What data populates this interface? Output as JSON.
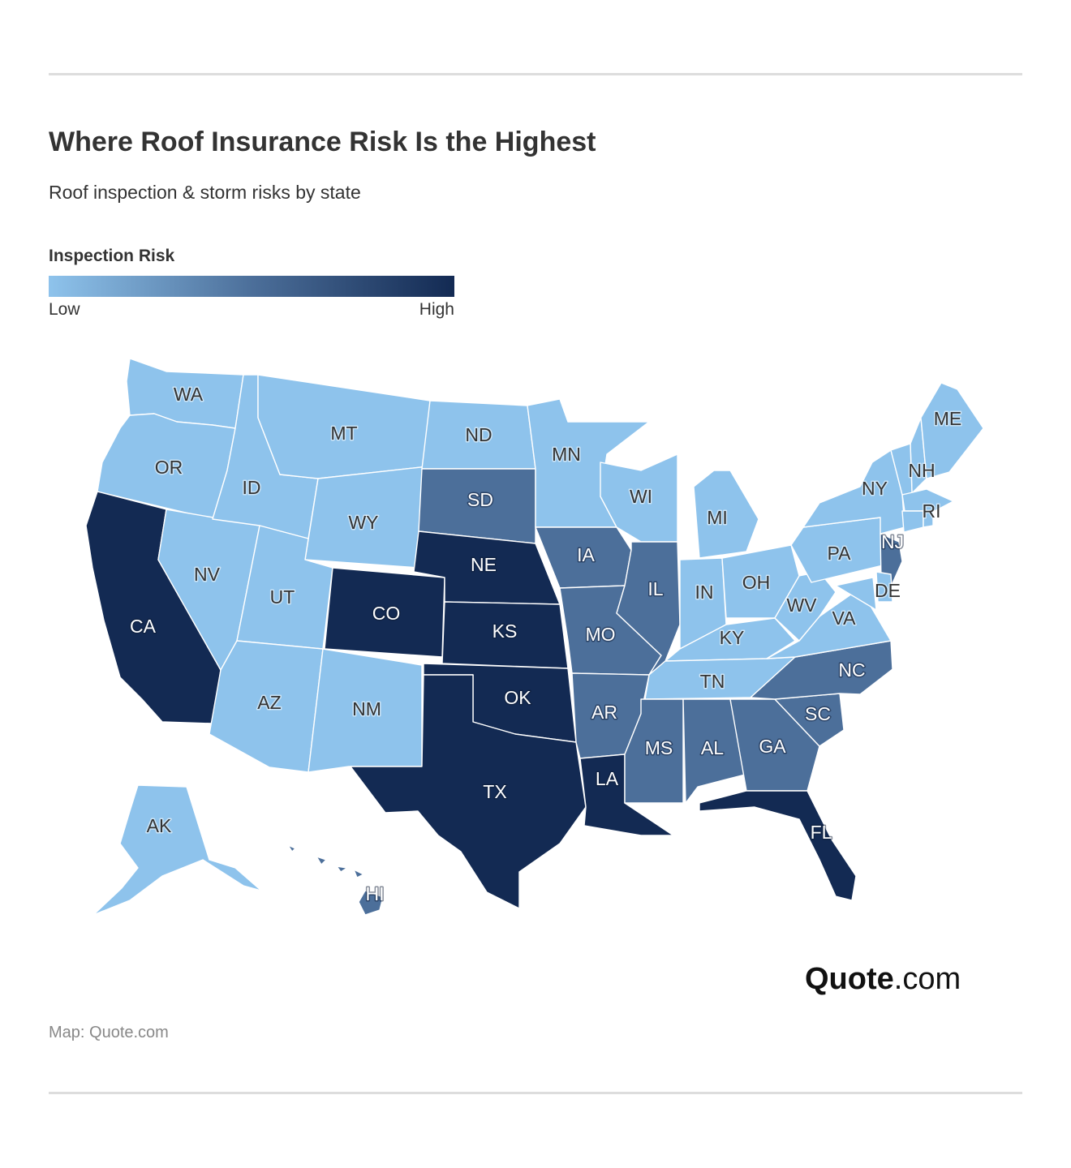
{
  "header": {
    "title": "Where Roof Insurance Risk Is the Highest",
    "subtitle": "Roof inspection & storm risks by state"
  },
  "legend": {
    "title": "Inspection Risk",
    "low_label": "Low",
    "high_label": "High"
  },
  "colors": {
    "low": "#8ec3ec",
    "medium": "#4c6f9a",
    "high": "#132a53",
    "border": "#ffffff"
  },
  "map": {
    "states": [
      {
        "code": "WA",
        "risk": "low"
      },
      {
        "code": "OR",
        "risk": "low"
      },
      {
        "code": "CA",
        "risk": "high"
      },
      {
        "code": "NV",
        "risk": "low"
      },
      {
        "code": "ID",
        "risk": "low"
      },
      {
        "code": "MT",
        "risk": "low"
      },
      {
        "code": "WY",
        "risk": "low"
      },
      {
        "code": "UT",
        "risk": "low"
      },
      {
        "code": "AZ",
        "risk": "low"
      },
      {
        "code": "CO",
        "risk": "high"
      },
      {
        "code": "NM",
        "risk": "low"
      },
      {
        "code": "ND",
        "risk": "low"
      },
      {
        "code": "SD",
        "risk": "medium"
      },
      {
        "code": "NE",
        "risk": "high"
      },
      {
        "code": "KS",
        "risk": "high"
      },
      {
        "code": "OK",
        "risk": "high"
      },
      {
        "code": "TX",
        "risk": "high"
      },
      {
        "code": "MN",
        "risk": "low"
      },
      {
        "code": "IA",
        "risk": "medium"
      },
      {
        "code": "MO",
        "risk": "medium"
      },
      {
        "code": "AR",
        "risk": "medium"
      },
      {
        "code": "LA",
        "risk": "high"
      },
      {
        "code": "WI",
        "risk": "low"
      },
      {
        "code": "IL",
        "risk": "medium"
      },
      {
        "code": "MI",
        "risk": "low"
      },
      {
        "code": "IN",
        "risk": "low"
      },
      {
        "code": "OH",
        "risk": "low"
      },
      {
        "code": "KY",
        "risk": "low"
      },
      {
        "code": "TN",
        "risk": "low"
      },
      {
        "code": "MS",
        "risk": "medium"
      },
      {
        "code": "AL",
        "risk": "medium"
      },
      {
        "code": "GA",
        "risk": "medium"
      },
      {
        "code": "FL",
        "risk": "high"
      },
      {
        "code": "SC",
        "risk": "medium"
      },
      {
        "code": "NC",
        "risk": "medium"
      },
      {
        "code": "VA",
        "risk": "low"
      },
      {
        "code": "WV",
        "risk": "low"
      },
      {
        "code": "PA",
        "risk": "low"
      },
      {
        "code": "NY",
        "risk": "low"
      },
      {
        "code": "NJ",
        "risk": "medium"
      },
      {
        "code": "DE",
        "risk": "low"
      },
      {
        "code": "MD",
        "risk": "low"
      },
      {
        "code": "NH",
        "risk": "low"
      },
      {
        "code": "VT",
        "risk": "low"
      },
      {
        "code": "ME",
        "risk": "low"
      },
      {
        "code": "MA",
        "risk": "low"
      },
      {
        "code": "CT",
        "risk": "low"
      },
      {
        "code": "RI",
        "risk": "low"
      },
      {
        "code": "AK",
        "risk": "low"
      },
      {
        "code": "HI",
        "risk": "medium"
      }
    ]
  },
  "branding": {
    "logo_brand": "Quote",
    "logo_suffix": ".com"
  },
  "footer": {
    "source": "Map: Quote.com"
  }
}
